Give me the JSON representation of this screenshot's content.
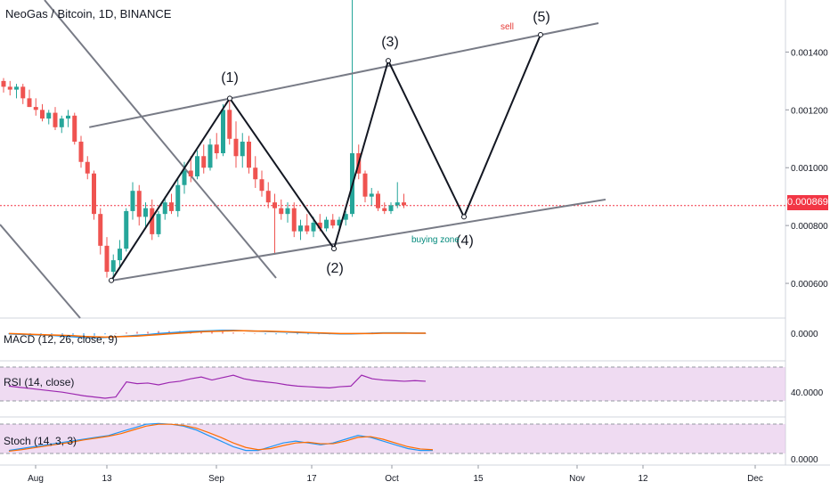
{
  "header": {
    "title": "NeoGas / Bitcoin, 1D, BINANCE"
  },
  "colors": {
    "up": "#26a69a",
    "down": "#ef5350",
    "wick": "#6b6b6b",
    "channel": "#787b86",
    "wave": "#131722",
    "price_line": "#f23645",
    "macd": "#2196f3",
    "signal": "#ff6d00",
    "rsi": "#9c27b0",
    "stoch_k": "#2196f3",
    "stoch_d": "#ff6d00",
    "band_fill": "#e1bee7"
  },
  "price_axis": {
    "ticks": [
      "0.001400",
      "0.001200",
      "0.001000",
      "0.000800",
      "0.000600"
    ],
    "current": "0.000869"
  },
  "time_axis": {
    "ticks": [
      "Aug",
      "13",
      "Sep",
      "17",
      "Oct",
      "15",
      "Nov",
      "12",
      "Dec"
    ]
  },
  "annotations": {
    "waves": [
      "(1)",
      "(2)",
      "(3)",
      "(4)",
      "(5)"
    ],
    "sell": "sell",
    "buying_zone": "buying zone"
  },
  "indicators": {
    "macd_label": "MACD (12, 26, close, 9)",
    "macd_tick": "0.0000",
    "rsi_label": "RSI (14, close)",
    "rsi_tick": "40.0000",
    "stoch_label": "Stoch (14, 3, 3)",
    "stoch_tick": "0.0000"
  },
  "chart_data": {
    "type": "candlestick",
    "title": "NeoGas / Bitcoin, 1D, BINANCE",
    "ylim": [
      0.00048,
      0.00158
    ],
    "candles_ohlc": [
      [
        0.0013,
        0.00131,
        0.00126,
        0.00128
      ],
      [
        0.00128,
        0.0013,
        0.00125,
        0.00127
      ],
      [
        0.00127,
        0.00129,
        0.00124,
        0.00128
      ],
      [
        0.00128,
        0.00129,
        0.00122,
        0.00124
      ],
      [
        0.00124,
        0.00127,
        0.00121,
        0.00121
      ],
      [
        0.00121,
        0.00124,
        0.00118,
        0.0012
      ],
      [
        0.0012,
        0.00122,
        0.00116,
        0.00117
      ],
      [
        0.00117,
        0.0012,
        0.00115,
        0.00119
      ],
      [
        0.00119,
        0.00121,
        0.00113,
        0.00114
      ],
      [
        0.00114,
        0.00118,
        0.00112,
        0.00117
      ],
      [
        0.00117,
        0.0012,
        0.00114,
        0.00118
      ],
      [
        0.00118,
        0.00119,
        0.00108,
        0.00109
      ],
      [
        0.00109,
        0.00111,
        0.001,
        0.00102
      ],
      [
        0.00102,
        0.00104,
        0.00096,
        0.00098
      ],
      [
        0.00098,
        0.00099,
        0.00082,
        0.00084
      ],
      [
        0.00084,
        0.00086,
        0.0007,
        0.00073
      ],
      [
        0.00073,
        0.00076,
        0.00062,
        0.00064
      ],
      [
        0.00064,
        0.0007,
        0.00061,
        0.00068
      ],
      [
        0.00068,
        0.00075,
        0.00066,
        0.00072
      ],
      [
        0.00072,
        0.00086,
        0.00071,
        0.00085
      ],
      [
        0.00085,
        0.00095,
        0.00082,
        0.00092
      ],
      [
        0.00092,
        0.00094,
        0.0008,
        0.00083
      ],
      [
        0.00083,
        0.00088,
        0.00079,
        0.00086
      ],
      [
        0.00086,
        0.00089,
        0.00075,
        0.00077
      ],
      [
        0.00077,
        0.00085,
        0.00076,
        0.00084
      ],
      [
        0.00084,
        0.0009,
        0.00082,
        0.00088
      ],
      [
        0.00088,
        0.00091,
        0.00084,
        0.00085
      ],
      [
        0.00085,
        0.00096,
        0.00083,
        0.00094
      ],
      [
        0.00094,
        0.00102,
        0.00091,
        0.00099
      ],
      [
        0.00099,
        0.00104,
        0.00095,
        0.00097
      ],
      [
        0.00097,
        0.00106,
        0.00096,
        0.00104
      ],
      [
        0.00104,
        0.00108,
        0.00098,
        0.001
      ],
      [
        0.001,
        0.0011,
        0.00099,
        0.00108
      ],
      [
        0.00108,
        0.00112,
        0.00103,
        0.00105
      ],
      [
        0.00105,
        0.00122,
        0.00104,
        0.0012
      ],
      [
        0.0012,
        0.00124,
        0.00108,
        0.0011
      ],
      [
        0.0011,
        0.00116,
        0.001,
        0.00104
      ],
      [
        0.00104,
        0.00112,
        0.001,
        0.00109
      ],
      [
        0.00109,
        0.00111,
        0.00098,
        0.001
      ],
      [
        0.001,
        0.00104,
        0.00093,
        0.00096
      ],
      [
        0.00096,
        0.00099,
        0.0009,
        0.00092
      ],
      [
        0.00092,
        0.00095,
        0.00086,
        0.00088
      ],
      [
        0.00088,
        0.00091,
        0.0007,
        0.00086
      ],
      [
        0.00086,
        0.00089,
        0.00082,
        0.00084
      ],
      [
        0.00084,
        0.00088,
        0.00081,
        0.00086
      ],
      [
        0.00086,
        0.00088,
        0.00076,
        0.00078
      ],
      [
        0.00078,
        0.00082,
        0.00075,
        0.0008
      ],
      [
        0.0008,
        0.00084,
        0.00077,
        0.00078
      ],
      [
        0.00078,
        0.00083,
        0.00076,
        0.00081
      ],
      [
        0.00081,
        0.00084,
        0.00078,
        0.00079
      ],
      [
        0.00079,
        0.00083,
        0.00078,
        0.00082
      ],
      [
        0.00082,
        0.00084,
        0.00079,
        0.0008
      ],
      [
        0.0008,
        0.00083,
        0.00079,
        0.00082
      ],
      [
        0.00082,
        0.00085,
        0.0008,
        0.00084
      ],
      [
        0.00084,
        0.00158,
        0.00083,
        0.00105
      ],
      [
        0.00105,
        0.00108,
        0.00096,
        0.00098
      ],
      [
        0.00098,
        0.00099,
        0.00088,
        0.0009
      ],
      [
        0.0009,
        0.00093,
        0.00087,
        0.00091
      ],
      [
        0.00091,
        0.00092,
        0.00085,
        0.00086
      ],
      [
        0.00086,
        0.00088,
        0.00084,
        0.00085
      ],
      [
        0.00085,
        0.00088,
        0.00084,
        0.00087
      ],
      [
        0.00087,
        0.00095,
        0.00086,
        0.00088
      ],
      [
        0.00088,
        0.00091,
        0.00086,
        0.00087
      ]
    ],
    "channel": {
      "upper": [
        [
          5,
          0.00114
        ],
        [
          66,
          0.0015
        ]
      ],
      "lower": [
        [
          8,
          0.00061
        ],
        [
          66,
          0.00089
        ]
      ]
    },
    "wave_points": [
      [
        8,
        0.00061
      ],
      [
        17,
        0.00124
      ],
      [
        24,
        0.00072
      ],
      [
        29,
        0.00137
      ],
      [
        34,
        0.00083
      ],
      [
        39,
        0.00146
      ]
    ],
    "current_price": 0.000869,
    "macd": [
      -0.2,
      -0.3,
      -0.4,
      -0.5,
      -0.6,
      -0.8,
      -1.0,
      -1.2,
      -1.3,
      -1.2,
      -1.0,
      -0.8,
      -0.6,
      -0.4,
      -0.1,
      0.1,
      0.3,
      0.5,
      0.6,
      0.7,
      0.8,
      0.8,
      0.7,
      0.6,
      0.5,
      0.4,
      0.3,
      0.2,
      0.1,
      0.0,
      -0.1,
      -0.2,
      -0.2,
      -0.1,
      0.0,
      0.1,
      0.1,
      0.1,
      0.0,
      0.0
    ],
    "macd_signal": [
      -0.1,
      -0.2,
      -0.3,
      -0.4,
      -0.5,
      -0.6,
      -0.7,
      -0.9,
      -1.0,
      -1.1,
      -1.0,
      -0.9,
      -0.8,
      -0.6,
      -0.4,
      -0.2,
      0.0,
      0.2,
      0.4,
      0.5,
      0.6,
      0.7,
      0.7,
      0.6,
      0.6,
      0.5,
      0.4,
      0.3,
      0.2,
      0.1,
      0.0,
      -0.1,
      -0.1,
      -0.1,
      -0.1,
      0.0,
      0.0,
      0.0,
      0.0,
      0.0
    ],
    "rsi": [
      48,
      46,
      44,
      42,
      40,
      38,
      35,
      32,
      30,
      28,
      30,
      55,
      52,
      53,
      50,
      54,
      56,
      60,
      63,
      58,
      62,
      66,
      60,
      57,
      55,
      53,
      50,
      48,
      47,
      46,
      45,
      47,
      48,
      66,
      60,
      58,
      57,
      56,
      57,
      56
    ],
    "stoch_k": [
      20,
      25,
      30,
      35,
      40,
      45,
      50,
      55,
      60,
      70,
      80,
      90,
      92,
      90,
      85,
      75,
      60,
      45,
      30,
      20,
      20,
      30,
      40,
      45,
      40,
      35,
      40,
      50,
      60,
      55,
      45,
      35,
      25,
      20,
      20
    ],
    "stoch_d": [
      18,
      22,
      27,
      32,
      37,
      42,
      48,
      53,
      58,
      65,
      75,
      85,
      90,
      90,
      87,
      80,
      68,
      55,
      40,
      28,
      22,
      25,
      33,
      40,
      42,
      38,
      38,
      45,
      55,
      57,
      50,
      40,
      30,
      24,
      22
    ]
  }
}
